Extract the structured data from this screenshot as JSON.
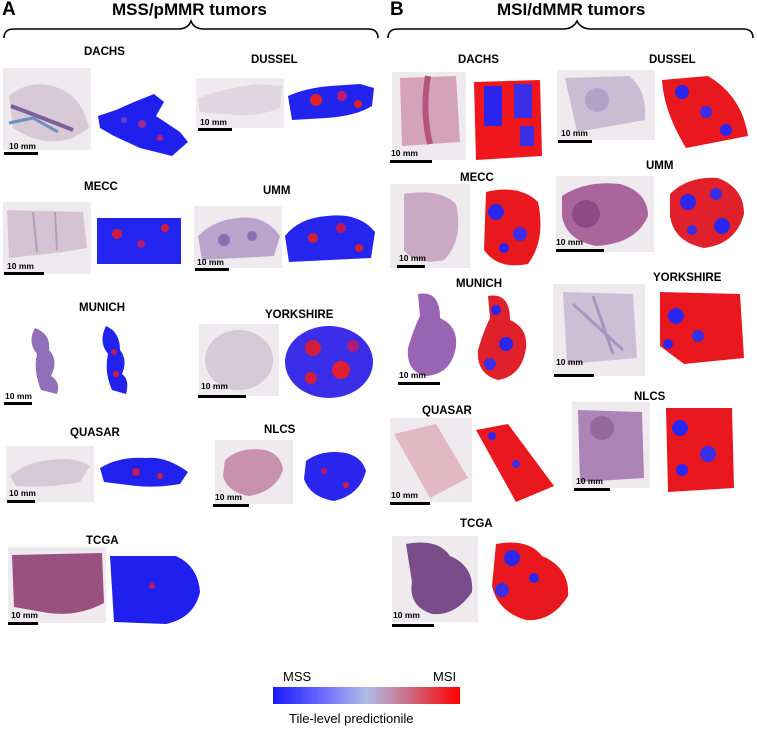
{
  "panels": [
    {
      "letter": "A",
      "title": "MSS/pMMR tumors",
      "samples": [
        {
          "label": "DACHS",
          "scale": "10 mm",
          "tone": "mss"
        },
        {
          "label": "DUSSEL",
          "scale": "10 mm",
          "tone": "mss"
        },
        {
          "label": "MECC",
          "scale": "10 mm",
          "tone": "mss"
        },
        {
          "label": "UMM",
          "scale": "10 mm",
          "tone": "mss"
        },
        {
          "label": "MUNICH",
          "scale": "10 mm",
          "tone": "mss"
        },
        {
          "label": "YORKSHIRE",
          "scale": "10 mm",
          "tone": "mss"
        },
        {
          "label": "QUASAR",
          "scale": "10 mm",
          "tone": "mss"
        },
        {
          "label": "NLCS",
          "scale": "10 mm",
          "tone": "mss"
        },
        {
          "label": "TCGA",
          "scale": "10 mm",
          "tone": "mss"
        }
      ]
    },
    {
      "letter": "B",
      "title": "MSI/dMMR tumors",
      "samples": [
        {
          "label": "DACHS",
          "scale": "10 mm",
          "tone": "msi"
        },
        {
          "label": "DUSSEL",
          "scale": "10 mm",
          "tone": "msi"
        },
        {
          "label": "MECC",
          "scale": "10 mm",
          "tone": "msi"
        },
        {
          "label": "UMM",
          "scale": "10 mm",
          "tone": "msi"
        },
        {
          "label": "MUNICH",
          "scale": "10 mm",
          "tone": "msi"
        },
        {
          "label": "YORKSHIRE",
          "scale": "10 mm",
          "tone": "msi"
        },
        {
          "label": "QUASAR",
          "scale": "10 mm",
          "tone": "msi"
        },
        {
          "label": "NLCS",
          "scale": "10 mm",
          "tone": "msi"
        },
        {
          "label": "TCGA",
          "scale": "10 mm",
          "tone": "msi"
        }
      ]
    }
  ],
  "legend": {
    "low_label": "MSS",
    "high_label": "MSI",
    "caption": "Tile-level predictionile",
    "colors": {
      "low": "#1a1aff",
      "mid": "#b0bde6",
      "high": "#ff0000"
    }
  }
}
